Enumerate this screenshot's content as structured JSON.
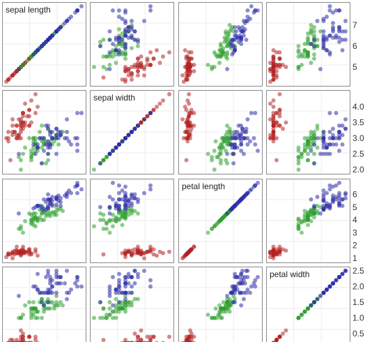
{
  "chart_data": {
    "type": "scatter",
    "title": "",
    "variables": [
      "sepal length",
      "sepal width",
      "petal length",
      "petal width"
    ],
    "ranges": {
      "sepal length": [
        4.3,
        7.9
      ],
      "sepal width": [
        2.0,
        4.4
      ],
      "petal length": [
        1.0,
        6.9
      ],
      "petal width": [
        0.1,
        2.5
      ]
    },
    "tick_labels": [
      [
        "7",
        "6",
        "5"
      ],
      [
        "4.0",
        "3.5",
        "3.0",
        "2.5",
        "2.0"
      ],
      [
        "6",
        "5",
        "4",
        "3",
        "2",
        "1"
      ],
      [
        "2.5",
        "2.0",
        "1.5",
        "1.0",
        "0.5"
      ]
    ],
    "grid": true,
    "legend": "none",
    "colors": [
      "#b22222",
      "#2e9e2e",
      "#2d2da8"
    ],
    "group_sizes": [
      50,
      50,
      50
    ],
    "series": [
      {
        "values": [
          [
            5.1,
            3.5,
            1.4,
            0.2
          ],
          [
            4.9,
            3.0,
            1.4,
            0.2
          ],
          [
            4.7,
            3.2,
            1.3,
            0.2
          ],
          [
            4.6,
            3.1,
            1.5,
            0.2
          ],
          [
            5.0,
            3.6,
            1.4,
            0.2
          ],
          [
            5.4,
            3.9,
            1.7,
            0.4
          ],
          [
            4.6,
            3.4,
            1.4,
            0.3
          ],
          [
            5.0,
            3.4,
            1.5,
            0.2
          ],
          [
            4.4,
            2.9,
            1.4,
            0.2
          ],
          [
            4.9,
            3.1,
            1.5,
            0.1
          ],
          [
            5.4,
            3.7,
            1.5,
            0.2
          ],
          [
            4.8,
            3.4,
            1.6,
            0.2
          ],
          [
            4.8,
            3.0,
            1.4,
            0.1
          ],
          [
            4.3,
            3.0,
            1.1,
            0.1
          ],
          [
            5.8,
            4.0,
            1.2,
            0.2
          ],
          [
            5.7,
            4.4,
            1.5,
            0.4
          ],
          [
            5.4,
            3.9,
            1.3,
            0.4
          ],
          [
            5.1,
            3.5,
            1.4,
            0.3
          ],
          [
            5.7,
            3.8,
            1.7,
            0.3
          ],
          [
            5.1,
            3.8,
            1.5,
            0.3
          ],
          [
            5.4,
            3.4,
            1.7,
            0.2
          ],
          [
            5.1,
            3.7,
            1.5,
            0.4
          ],
          [
            4.6,
            3.6,
            1.0,
            0.2
          ],
          [
            5.1,
            3.3,
            1.7,
            0.5
          ],
          [
            4.8,
            3.4,
            1.9,
            0.2
          ],
          [
            5.0,
            3.0,
            1.6,
            0.2
          ],
          [
            5.0,
            3.4,
            1.6,
            0.4
          ],
          [
            5.2,
            3.5,
            1.5,
            0.2
          ],
          [
            5.2,
            3.4,
            1.4,
            0.2
          ],
          [
            4.7,
            3.2,
            1.6,
            0.2
          ],
          [
            4.8,
            3.1,
            1.6,
            0.2
          ],
          [
            5.4,
            3.4,
            1.5,
            0.4
          ],
          [
            5.2,
            4.1,
            1.5,
            0.1
          ],
          [
            5.5,
            4.2,
            1.4,
            0.2
          ],
          [
            4.9,
            3.1,
            1.5,
            0.2
          ],
          [
            5.0,
            3.2,
            1.2,
            0.2
          ],
          [
            5.5,
            3.5,
            1.3,
            0.2
          ],
          [
            4.9,
            3.6,
            1.4,
            0.1
          ],
          [
            4.4,
            3.0,
            1.3,
            0.2
          ],
          [
            5.1,
            3.4,
            1.5,
            0.2
          ],
          [
            5.0,
            3.5,
            1.3,
            0.3
          ],
          [
            4.5,
            2.3,
            1.3,
            0.3
          ],
          [
            4.4,
            3.2,
            1.3,
            0.2
          ],
          [
            5.0,
            3.5,
            1.6,
            0.6
          ],
          [
            5.1,
            3.8,
            1.9,
            0.4
          ],
          [
            4.8,
            3.0,
            1.4,
            0.3
          ],
          [
            5.1,
            3.8,
            1.6,
            0.2
          ],
          [
            4.6,
            3.2,
            1.4,
            0.2
          ],
          [
            5.3,
            3.7,
            1.5,
            0.2
          ],
          [
            5.0,
            3.3,
            1.4,
            0.2
          ]
        ]
      },
      {
        "values": [
          [
            7.0,
            3.2,
            4.7,
            1.4
          ],
          [
            6.4,
            3.2,
            4.5,
            1.5
          ],
          [
            6.9,
            3.1,
            4.9,
            1.5
          ],
          [
            5.5,
            2.3,
            4.0,
            1.3
          ],
          [
            6.5,
            2.8,
            4.6,
            1.5
          ],
          [
            5.7,
            2.8,
            4.5,
            1.3
          ],
          [
            6.3,
            3.3,
            4.7,
            1.6
          ],
          [
            4.9,
            2.4,
            3.3,
            1.0
          ],
          [
            6.6,
            2.9,
            4.6,
            1.3
          ],
          [
            5.2,
            2.7,
            3.9,
            1.4
          ],
          [
            5.0,
            2.0,
            3.5,
            1.0
          ],
          [
            5.9,
            3.0,
            4.2,
            1.5
          ],
          [
            6.0,
            2.2,
            4.0,
            1.0
          ],
          [
            6.1,
            2.9,
            4.7,
            1.4
          ],
          [
            5.6,
            2.9,
            3.6,
            1.3
          ],
          [
            6.7,
            3.1,
            4.4,
            1.4
          ],
          [
            5.6,
            3.0,
            4.5,
            1.5
          ],
          [
            5.8,
            2.7,
            4.1,
            1.0
          ],
          [
            6.2,
            2.2,
            4.5,
            1.5
          ],
          [
            5.6,
            2.5,
            3.9,
            1.1
          ],
          [
            5.9,
            3.2,
            4.8,
            1.8
          ],
          [
            6.1,
            2.8,
            4.0,
            1.3
          ],
          [
            6.3,
            2.5,
            4.9,
            1.5
          ],
          [
            6.1,
            2.8,
            4.7,
            1.2
          ],
          [
            6.4,
            2.9,
            4.3,
            1.3
          ],
          [
            6.6,
            3.0,
            4.4,
            1.4
          ],
          [
            6.8,
            2.8,
            4.8,
            1.4
          ],
          [
            6.7,
            3.0,
            5.0,
            1.7
          ],
          [
            6.0,
            2.9,
            4.5,
            1.5
          ],
          [
            5.7,
            2.6,
            3.5,
            1.0
          ],
          [
            5.5,
            2.4,
            3.8,
            1.1
          ],
          [
            5.5,
            2.4,
            3.7,
            1.0
          ],
          [
            5.8,
            2.7,
            3.9,
            1.2
          ],
          [
            6.0,
            2.7,
            5.1,
            1.6
          ],
          [
            5.4,
            3.0,
            4.5,
            1.5
          ],
          [
            6.0,
            3.4,
            4.5,
            1.6
          ],
          [
            6.7,
            3.1,
            4.7,
            1.5
          ],
          [
            6.3,
            2.3,
            4.4,
            1.3
          ],
          [
            5.6,
            3.0,
            4.1,
            1.3
          ],
          [
            5.5,
            2.5,
            4.0,
            1.3
          ],
          [
            5.5,
            2.6,
            4.4,
            1.2
          ],
          [
            6.1,
            3.0,
            4.6,
            1.4
          ],
          [
            5.8,
            2.6,
            4.0,
            1.2
          ],
          [
            5.0,
            2.3,
            3.3,
            1.0
          ],
          [
            5.6,
            2.7,
            4.2,
            1.3
          ],
          [
            5.7,
            3.0,
            4.2,
            1.2
          ],
          [
            5.7,
            2.9,
            4.2,
            1.3
          ],
          [
            6.2,
            2.9,
            4.3,
            1.3
          ],
          [
            5.1,
            2.5,
            3.0,
            1.1
          ],
          [
            5.7,
            2.8,
            4.1,
            1.3
          ]
        ]
      },
      {
        "values": [
          [
            6.3,
            3.3,
            6.0,
            2.5
          ],
          [
            5.8,
            2.7,
            5.1,
            1.9
          ],
          [
            7.1,
            3.0,
            5.9,
            2.1
          ],
          [
            6.3,
            2.9,
            5.6,
            1.8
          ],
          [
            6.5,
            3.0,
            5.8,
            2.2
          ],
          [
            7.6,
            3.0,
            6.6,
            2.1
          ],
          [
            4.9,
            2.5,
            4.5,
            1.7
          ],
          [
            7.3,
            2.9,
            6.3,
            1.8
          ],
          [
            6.7,
            2.5,
            5.8,
            1.8
          ],
          [
            7.2,
            3.6,
            6.1,
            2.5
          ],
          [
            6.5,
            3.2,
            5.1,
            2.0
          ],
          [
            6.4,
            2.7,
            5.3,
            1.9
          ],
          [
            6.8,
            3.0,
            5.5,
            2.1
          ],
          [
            5.7,
            2.5,
            5.0,
            2.0
          ],
          [
            5.8,
            2.8,
            5.1,
            2.4
          ],
          [
            6.4,
            3.2,
            5.3,
            2.3
          ],
          [
            6.5,
            3.0,
            5.5,
            1.8
          ],
          [
            7.7,
            3.8,
            6.7,
            2.2
          ],
          [
            7.7,
            2.6,
            6.9,
            2.3
          ],
          [
            6.0,
            2.2,
            5.0,
            1.5
          ],
          [
            6.9,
            3.2,
            5.7,
            2.3
          ],
          [
            5.6,
            2.8,
            4.9,
            2.0
          ],
          [
            7.7,
            2.8,
            6.7,
            2.0
          ],
          [
            6.3,
            2.7,
            4.9,
            1.8
          ],
          [
            6.7,
            3.3,
            5.7,
            2.1
          ],
          [
            7.2,
            3.2,
            6.0,
            1.8
          ],
          [
            6.2,
            2.8,
            4.8,
            1.8
          ],
          [
            6.1,
            3.0,
            4.9,
            1.8
          ],
          [
            6.4,
            2.8,
            5.6,
            2.1
          ],
          [
            7.2,
            3.0,
            5.8,
            1.6
          ],
          [
            7.4,
            2.8,
            6.1,
            1.9
          ],
          [
            7.9,
            3.8,
            6.4,
            2.0
          ],
          [
            6.4,
            2.8,
            5.6,
            2.2
          ],
          [
            6.3,
            2.8,
            5.1,
            1.5
          ],
          [
            6.1,
            2.6,
            5.6,
            1.4
          ],
          [
            7.7,
            3.0,
            6.1,
            2.3
          ],
          [
            6.3,
            3.4,
            5.6,
            2.4
          ],
          [
            6.4,
            3.1,
            5.5,
            1.8
          ],
          [
            6.0,
            3.0,
            4.8,
            1.8
          ],
          [
            6.9,
            3.1,
            5.4,
            2.1
          ],
          [
            6.7,
            3.1,
            5.6,
            2.4
          ],
          [
            6.9,
            3.1,
            5.1,
            2.3
          ],
          [
            5.8,
            2.7,
            5.1,
            1.9
          ],
          [
            6.8,
            3.2,
            5.9,
            2.3
          ],
          [
            6.7,
            3.3,
            5.7,
            2.5
          ],
          [
            6.7,
            3.0,
            5.2,
            2.3
          ],
          [
            6.3,
            2.5,
            5.0,
            1.9
          ],
          [
            6.5,
            3.0,
            5.2,
            2.0
          ],
          [
            6.2,
            3.4,
            5.4,
            2.3
          ],
          [
            5.9,
            3.0,
            5.1,
            1.8
          ]
        ]
      }
    ]
  }
}
